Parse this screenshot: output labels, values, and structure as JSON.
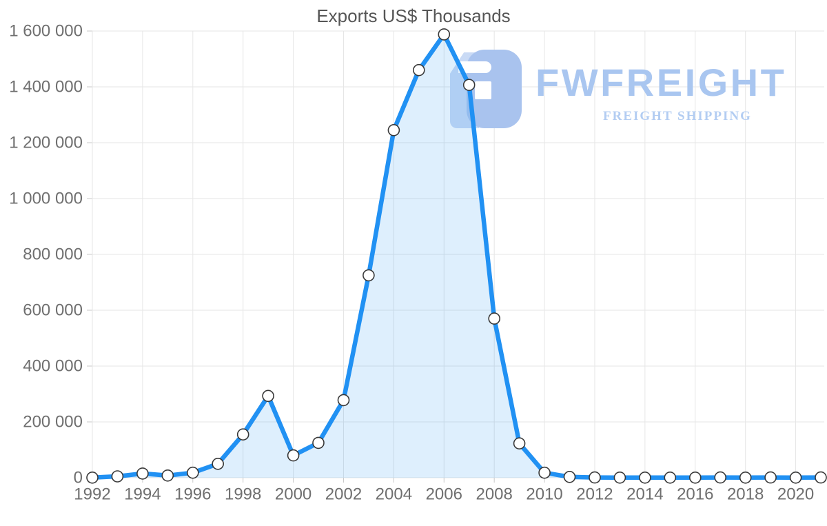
{
  "title": "Exports US$ Thousands",
  "watermark": {
    "brand": "FWFREIGHT",
    "tagline": "FREIGHT SHIPPING",
    "logo_color": "#a9c3ee",
    "logo_light_color": "#c9daf5",
    "brand_color": "#a9c6f0",
    "tagline_color": "#b3cdf2"
  },
  "chart_data": {
    "type": "area",
    "title": "Exports US$ Thousands",
    "xlabel": "",
    "ylabel": "",
    "x": [
      1992,
      1993,
      1994,
      1995,
      1996,
      1997,
      1998,
      1999,
      2000,
      2001,
      2002,
      2003,
      2004,
      2005,
      2006,
      2007,
      2008,
      2009,
      2010,
      2011,
      2012,
      2013,
      2014,
      2015,
      2016,
      2017,
      2018,
      2019,
      2020,
      2021
    ],
    "values": [
      500,
      5000,
      15000,
      8000,
      18000,
      50000,
      155000,
      293000,
      80000,
      125000,
      278000,
      725000,
      1245000,
      1460000,
      1588000,
      1407000,
      570000,
      123000,
      18000,
      3000,
      1000,
      500,
      500,
      500,
      500,
      1000,
      500,
      1000,
      500,
      1000
    ],
    "ylim": [
      0,
      1600000
    ],
    "y_tick_step": 200000,
    "y_tick_labels": [
      "0",
      "200 000",
      "400 000",
      "600 000",
      "800 000",
      "1 000 000",
      "1 200 000",
      "1 400 000",
      "1 600 000"
    ],
    "x_tick_step": 2,
    "x_tick_labels": [
      "1992",
      "1994",
      "1996",
      "1998",
      "2000",
      "2002",
      "2004",
      "2006",
      "2008",
      "2010",
      "2012",
      "2014",
      "2016",
      "2018",
      "2020"
    ],
    "grid": true,
    "legend": "none",
    "line_color": "#2191f3",
    "fill_color": "rgba(33,150,243,0.15)",
    "marker_fill": "#ffffff",
    "marker_stroke": "#383838",
    "grid_color": "#e6e6e6",
    "tick_color": "#c9c9c9",
    "label_color": "#6f6f6f",
    "title_color": "#565656"
  }
}
